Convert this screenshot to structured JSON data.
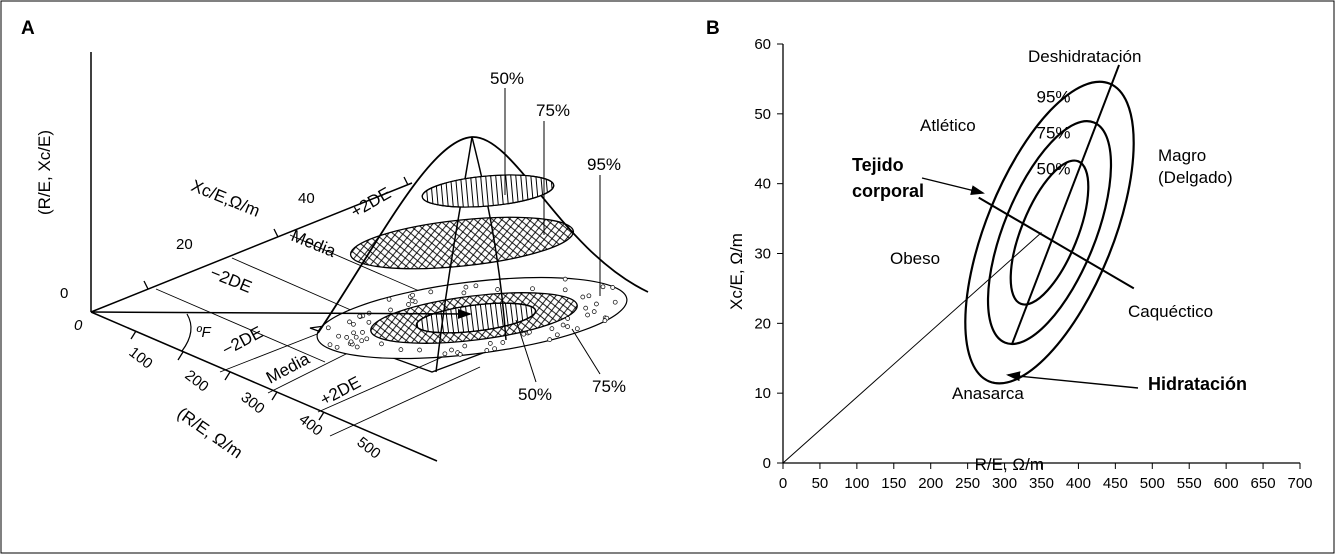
{
  "panel_a": {
    "label": "A",
    "z_axis_label": "(R/E, Xc/E)",
    "z_tick": "0",
    "origin_label": "0",
    "xc_axis_label": "Xc/E,Ω/m",
    "xc_ticks": [
      "20",
      "40"
    ],
    "re_axis_label": "(R/E, Ω/m",
    "re_ticks": [
      "100",
      "200",
      "300",
      "400",
      "500"
    ],
    "angle_label": "ºF",
    "back_bands": [
      "−2DE",
      "Media",
      "+2DE"
    ],
    "floor_bands": [
      "−2DE",
      "Media",
      "+2DE"
    ],
    "percent_top": [
      "50%",
      "75%",
      "95%"
    ],
    "percent_bottom": [
      "50%",
      "75%"
    ]
  },
  "panel_b": {
    "label": "B",
    "chart_data": {
      "type": "scatter",
      "xlabel": "R/E,  Ω/m",
      "ylabel": "Xc/E,  Ω/m",
      "xlim": [
        0,
        700
      ],
      "ylim": [
        0,
        60
      ],
      "x_ticks": [
        "0",
        "50",
        "100",
        "150",
        "200",
        "250",
        "300",
        "350",
        "400",
        "450",
        "500",
        "550",
        "600",
        "650",
        "700"
      ],
      "y_ticks": [
        "0",
        "10",
        "20",
        "30",
        "40",
        "50",
        "60"
      ],
      "tolerance_ellipses": [
        {
          "label": "50%",
          "center": [
            350,
            33
          ],
          "rx": 38,
          "ry": 11
        },
        {
          "label": "75%",
          "center": [
            350,
            33
          ],
          "rx": 62,
          "ry": 17
        },
        {
          "label": "95%",
          "center": [
            350,
            33
          ],
          "rx": 86,
          "ry": 23
        }
      ],
      "major_axis": {
        "from": [
          310,
          17
        ],
        "to": [
          455,
          57
        ]
      },
      "minor_axis": {
        "from": [
          265,
          38
        ],
        "to": [
          475,
          25
        ]
      },
      "reference_line": {
        "from": [
          0,
          0
        ],
        "to": [
          350,
          33
        ]
      },
      "regions": [
        "Deshidratación",
        "Atlético",
        "Magro\n(Delgado)",
        "Obeso",
        "Caquéctico",
        "Anasarca"
      ],
      "vectors": [
        "Tejido\ncorporal",
        "Hidratación"
      ]
    }
  },
  "colors": {
    "ink": "#000000",
    "background": "#ffffff"
  }
}
